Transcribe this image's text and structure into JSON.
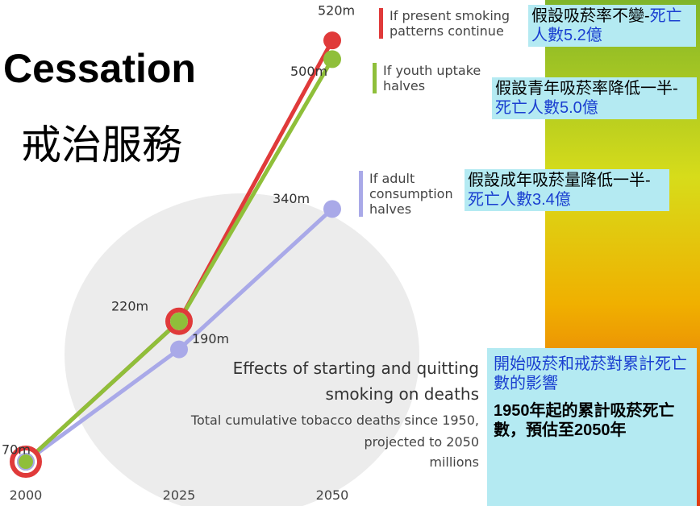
{
  "slide_title": "Cessation",
  "slide_subtitle": "戒治服務",
  "notes": [
    {
      "text": "假設吸菸率不變-",
      "highlight": "死亡人數5.2億"
    },
    {
      "text": "假設青年吸菸率降低一半-",
      "highlight": "死亡人數5.0億"
    },
    {
      "text": "假設成年吸菸量降低一半-",
      "highlight": "死亡人數3.4億"
    },
    {
      "highlight": "開始吸菸和戒菸對累計死亡數的影響",
      "text": "1950年起的累計吸菸死亡數，預估至2050年"
    }
  ],
  "chart_data": {
    "type": "line",
    "title": "Effects of starting and quitting smoking on deaths",
    "subtitle": "Total cumulative tobacco deaths since 1950, projected to 2050",
    "y_label": "millions",
    "x": [
      2000,
      2025,
      2050
    ],
    "xlim": [
      2000,
      2050
    ],
    "xticks": [
      2000,
      2025,
      2050
    ],
    "series": [
      {
        "name": "If present smoking patterns continue",
        "color": "#e03a3a",
        "values": [
          70,
          220,
          520
        ],
        "value_labels": [
          "70m",
          "220m",
          "520m"
        ]
      },
      {
        "name": "If youth uptake halves",
        "color": "#8fbf3a",
        "values": [
          70,
          220,
          500
        ],
        "value_labels": [
          null,
          null,
          "500m"
        ]
      },
      {
        "name": "If adult consumption halves",
        "color": "#a9a9e8",
        "values": [
          70,
          190,
          340
        ],
        "value_labels": [
          null,
          "190m",
          "340m"
        ]
      }
    ]
  }
}
